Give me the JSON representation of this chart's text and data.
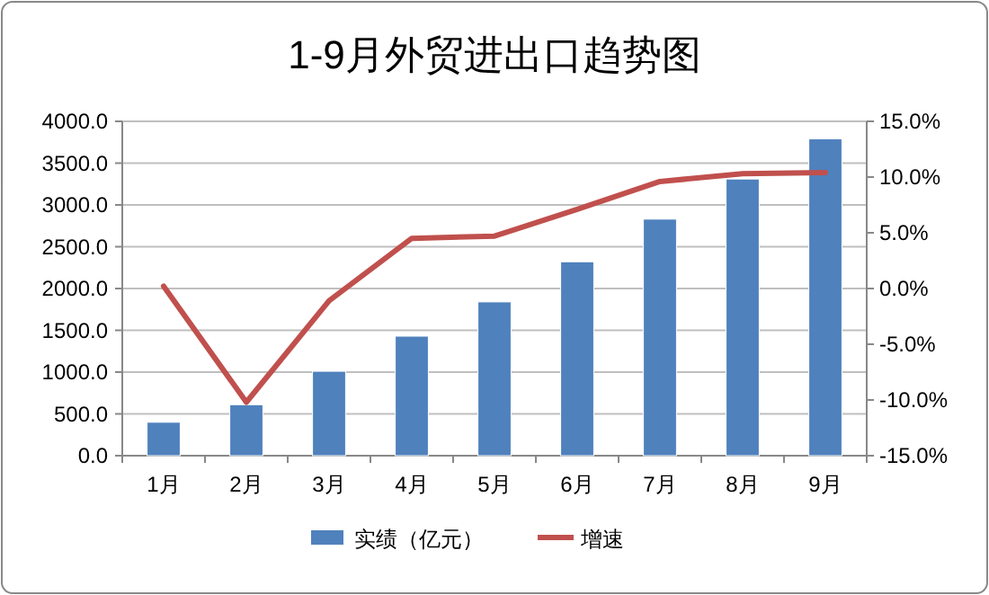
{
  "chart_data": {
    "type": "bar",
    "title": "1-9月外贸进出口趋势图",
    "categories": [
      "1月",
      "2月",
      "3月",
      "4月",
      "5月",
      "6月",
      "7月",
      "8月",
      "9月"
    ],
    "series": [
      {
        "name": "实绩（亿元）",
        "color": "#4f81bd",
        "values": [
          400,
          610,
          1010,
          1430,
          1840,
          2320,
          2830,
          3310,
          3790
        ]
      },
      {
        "name": "增速",
        "type": "line",
        "axis": "y2",
        "color": "#c0504d",
        "values": [
          0.2,
          -10.2,
          -1.1,
          4.5,
          4.7,
          7.1,
          9.6,
          10.3,
          10.4
        ]
      }
    ],
    "ylim": [
      0,
      4000
    ],
    "yticks": [
      {
        "value": 0,
        "label": "0.0"
      },
      {
        "value": 500,
        "label": "500.0"
      },
      {
        "value": 1000,
        "label": "1000.0"
      },
      {
        "value": 1500,
        "label": "1500.0"
      },
      {
        "value": 2000,
        "label": "2000.0"
      },
      {
        "value": 2500,
        "label": "2500.0"
      },
      {
        "value": 3000,
        "label": "3000.0"
      },
      {
        "value": 3500,
        "label": "3500.0"
      },
      {
        "value": 4000,
        "label": "4000.0"
      }
    ],
    "y2lim": [
      -15,
      15
    ],
    "y2ticks": [
      {
        "value": -15,
        "label": "-15.0%"
      },
      {
        "value": -10,
        "label": "-10.0%"
      },
      {
        "value": -5,
        "label": "-5.0%"
      },
      {
        "value": 0,
        "label": "0.0%"
      },
      {
        "value": 5,
        "label": "5.0%"
      },
      {
        "value": 10,
        "label": "10.0%"
      },
      {
        "value": 15,
        "label": "15.0%"
      }
    ],
    "grid": "y",
    "legend": "bottom",
    "marker": "none",
    "line_style": "solid"
  }
}
